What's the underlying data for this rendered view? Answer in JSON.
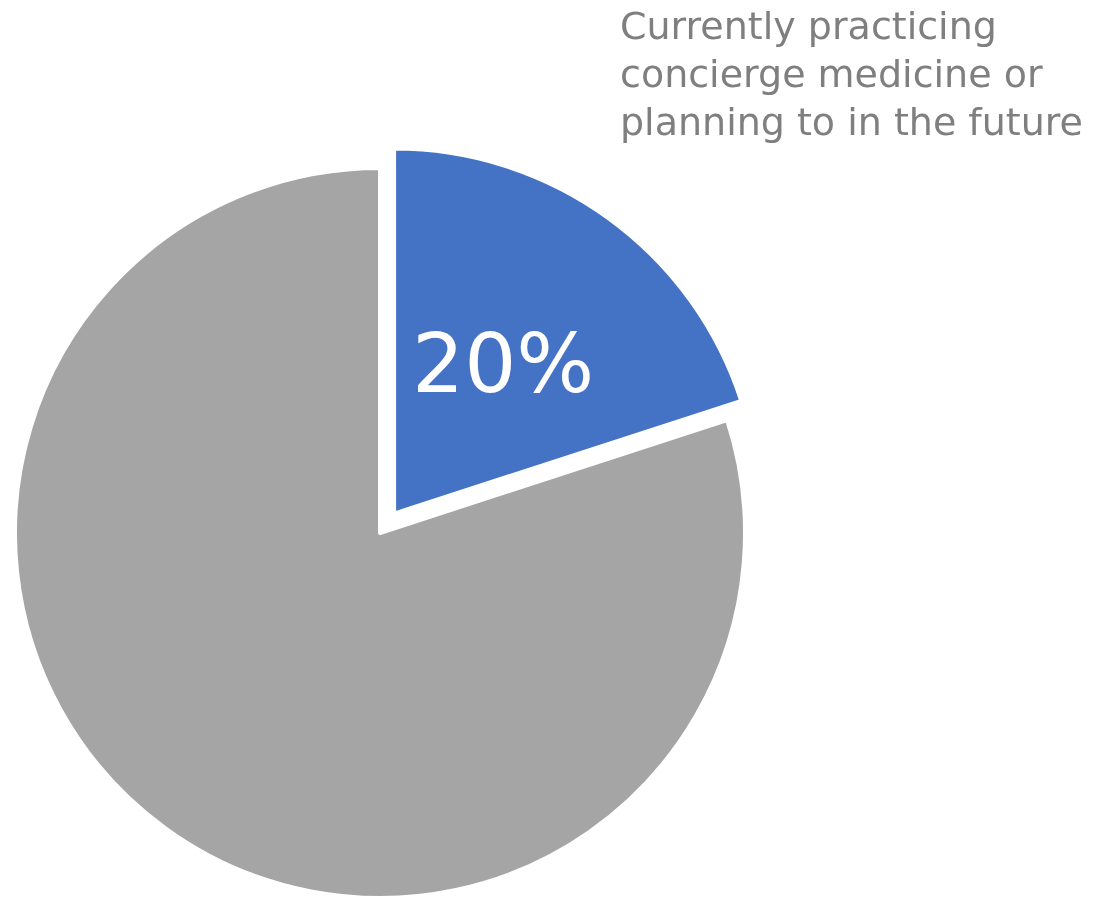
{
  "chart_data": {
    "type": "pie",
    "categories": [
      "Currently practicing concierge medicine or planning to in the future",
      null
    ],
    "values": [
      20,
      80
    ],
    "colors": [
      "#4472c4",
      "#a5a5a5"
    ],
    "value_labels": [
      "20%",
      null
    ],
    "legend": false
  }
}
